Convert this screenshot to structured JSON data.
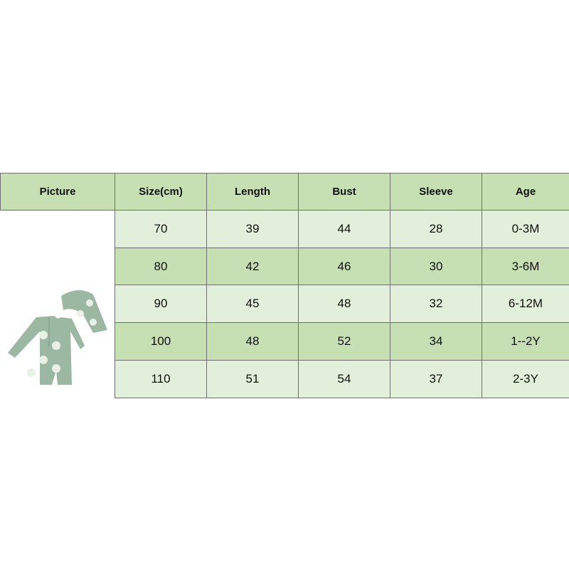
{
  "headers": [
    "Picture",
    "Size(cm)",
    "Length",
    "Bust",
    "Sleeve",
    "Age"
  ],
  "rows": [
    [
      "70",
      "39",
      "44",
      "28",
      "0-3M"
    ],
    [
      "80",
      "42",
      "46",
      "30",
      "3-6M"
    ],
    [
      "90",
      "45",
      "48",
      "32",
      "6-12M"
    ],
    [
      "100",
      "48",
      "52",
      "34",
      "1--2Y"
    ],
    [
      "110",
      "51",
      "54",
      "37",
      "2-3Y"
    ]
  ],
  "colors": {
    "header": "#c6e0b4",
    "row_light": "#e2efda",
    "row_dark": "#c6e0b4",
    "garment": "#9db8a2"
  },
  "picture": {
    "icon": "green-turtle-romper-with-sun-hat"
  }
}
